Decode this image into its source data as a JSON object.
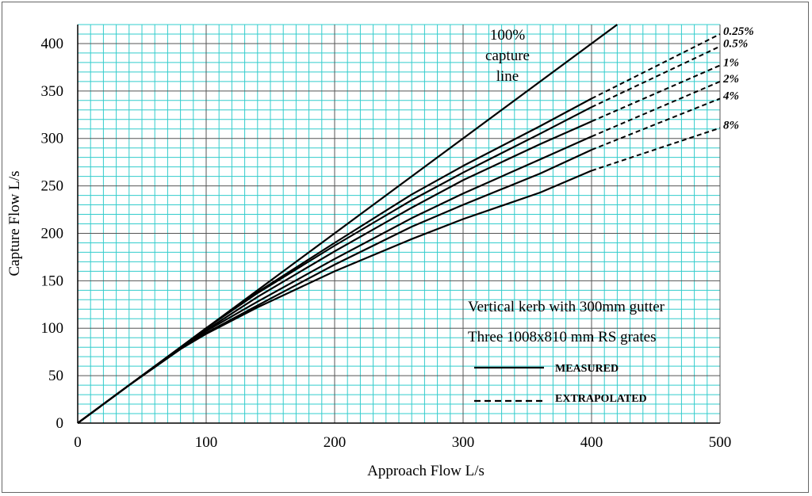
{
  "chart_data": {
    "type": "line",
    "xlabel": "Approach Flow L/s",
    "ylabel": "Capture Flow L/s",
    "xlim": [
      0,
      500
    ],
    "ylim": [
      0,
      420
    ],
    "xticks": [
      0,
      100,
      200,
      300,
      400,
      500
    ],
    "yticks": [
      0,
      50,
      100,
      150,
      200,
      250,
      300,
      350,
      400
    ],
    "grid": true,
    "minor_grid_color": "#33cccc",
    "major_grid_color": "#000000",
    "capture_line": {
      "label_lines": [
        "100%",
        "capture",
        "line"
      ],
      "x": [
        0,
        420
      ],
      "y": [
        0,
        420
      ]
    },
    "series": [
      {
        "name": "0.25%",
        "measured": {
          "x": [
            0,
            40,
            80,
            100,
            140,
            200,
            260,
            300,
            360,
            400
          ],
          "y": [
            0,
            40,
            80,
            100,
            138,
            190,
            241,
            271,
            313,
            342
          ]
        },
        "extrapolated": {
          "x": [
            400,
            500
          ],
          "y": [
            342,
            410
          ]
        }
      },
      {
        "name": "0.5%",
        "measured": {
          "x": [
            0,
            40,
            80,
            100,
            140,
            200,
            260,
            300,
            360,
            400
          ],
          "y": [
            0,
            40,
            80,
            100,
            137,
            187,
            235,
            264,
            305,
            333
          ]
        },
        "extrapolated": {
          "x": [
            400,
            500
          ],
          "y": [
            333,
            397
          ]
        }
      },
      {
        "name": "1%",
        "measured": {
          "x": [
            0,
            40,
            80,
            100,
            140,
            200,
            260,
            300,
            360,
            400
          ],
          "y": [
            0,
            40,
            79,
            98,
            133,
            181,
            227,
            256,
            294,
            318
          ]
        },
        "extrapolated": {
          "x": [
            400,
            500
          ],
          "y": [
            318,
            377
          ]
        }
      },
      {
        "name": "2%",
        "measured": {
          "x": [
            0,
            40,
            80,
            100,
            140,
            200,
            260,
            300,
            360,
            400
          ],
          "y": [
            0,
            40,
            79,
            97,
            128,
            173,
            216,
            242,
            278,
            302
          ]
        },
        "extrapolated": {
          "x": [
            400,
            500
          ],
          "y": [
            302,
            360
          ]
        }
      },
      {
        "name": "4%",
        "measured": {
          "x": [
            0,
            40,
            80,
            100,
            140,
            200,
            260,
            300,
            360,
            400
          ],
          "y": [
            0,
            40,
            78,
            95,
            124,
            167,
            207,
            230,
            263,
            288
          ]
        },
        "extrapolated": {
          "x": [
            400,
            500
          ],
          "y": [
            288,
            342
          ]
        }
      },
      {
        "name": "8%",
        "measured": {
          "x": [
            0,
            40,
            80,
            100,
            140,
            200,
            260,
            300,
            360,
            400
          ],
          "y": [
            0,
            40,
            78,
            94,
            122,
            160,
            194,
            215,
            243,
            266
          ]
        },
        "extrapolated": {
          "x": [
            400,
            500
          ],
          "y": [
            266,
            311
          ]
        }
      }
    ],
    "annotations": [
      "Vertical kerb with 300mm gutter",
      "Three 1008x810 mm RS grates"
    ],
    "legend": {
      "placement": "bottom-right",
      "items": [
        {
          "label": "MEASURED",
          "style": "solid"
        },
        {
          "label": "EXTRAPOLATED",
          "style": "dashed"
        }
      ]
    }
  }
}
